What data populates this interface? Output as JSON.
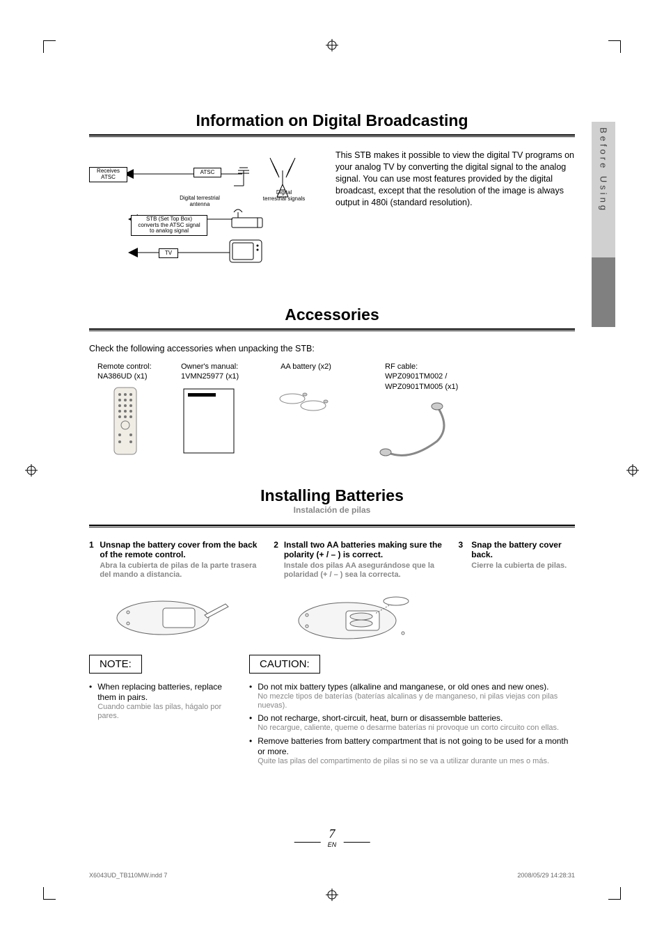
{
  "side_tab": "Before Using",
  "sections": {
    "info": {
      "title": "Information on Digital Broadcasting",
      "paragraph": "This STB makes it possible to view the digital TV programs on your analog TV by converting the digital signal to the analog signal. You can use most features provided by the digital broadcast, except that the resolution of the image is always output in 480i (standard resolution).",
      "diagram": {
        "receives": "Receives\nATSC",
        "atsc": "ATSC",
        "antenna_label": "Digital terrestrial\nantenna",
        "signals_label": "Digital\nterrestrial signals",
        "stb": "STB (Set Top Box)\nconverts the ATSC signal\nto analog signal",
        "tv": "TV"
      }
    },
    "accessories": {
      "title": "Accessories",
      "intro": "Check the following accessories when unpacking the STB:",
      "items": [
        {
          "label": "Remote control:\nNA386UD (x1)"
        },
        {
          "label": "Owner's manual:\n1VMN25977 (x1)"
        },
        {
          "label": "AA battery (x2)"
        },
        {
          "label": "RF cable:\nWPZ0901TM002 /\nWPZ0901TM005 (x1)"
        }
      ]
    },
    "batteries": {
      "title": "Installing Batteries",
      "subtitle": "Instalación de pilas",
      "steps": [
        {
          "num": "1",
          "head": "Unsnap the battery cover from the back of the remote control.",
          "sub": "Abra la cubierta de pilas de la parte trasera del mando a distancia."
        },
        {
          "num": "2",
          "head": "Install two AA batteries making sure the polarity (+ / – ) is correct.",
          "sub": "Instale dos pilas AA asegurándose que la polaridad (+ / – ) sea la correcta."
        },
        {
          "num": "3",
          "head": "Snap the battery cover back.",
          "sub": "Cierre la cubierta de pilas."
        }
      ],
      "note_label": "NOTE:",
      "note": {
        "main": "When replacing batteries, replace them in pairs.",
        "sub": "Cuando cambie las pilas, hágalo por pares."
      },
      "caution_label": "CAUTION:",
      "cautions": [
        {
          "main": "Do not mix battery types (alkaline and manganese, or old ones and new ones).",
          "sub": "No mezcle tipos de baterías (baterías alcalinas y de manganeso, ni pilas viejas con pilas nuevas)."
        },
        {
          "main": "Do not recharge, short-circuit, heat, burn or disassemble batteries.",
          "sub": "No recargue, caliente, queme o desarme baterías ni provoque un corto circuito con ellas."
        },
        {
          "main": "Remove batteries from battery compartment that is not going to be used for a month or more.",
          "sub": "Quite las pilas del compartimento de pilas si no se va a utilizar durante un mes o más."
        }
      ]
    }
  },
  "page_number": "7",
  "page_lang": "EN",
  "footer": {
    "left": "X6043UD_TB110MW.indd   7",
    "right": "2008/05/29   14:28:31"
  },
  "colors": {
    "spanish": "#888888",
    "tab_bg": "#d0d0d0",
    "stripe_bg": "#808080"
  }
}
